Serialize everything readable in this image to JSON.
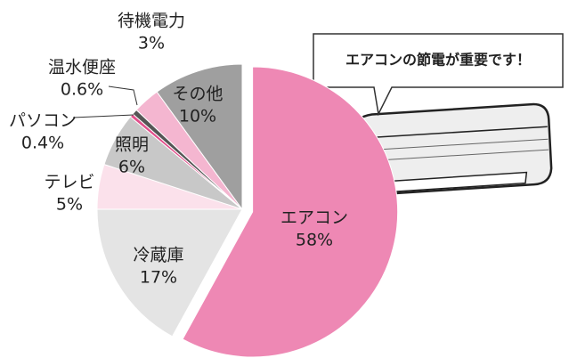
{
  "chart_data": {
    "type": "pie",
    "categories": [
      "エアコン",
      "冷蔵庫",
      "テレビ",
      "照明",
      "パソコン",
      "温水便座",
      "待機電力",
      "その他"
    ],
    "values": [
      58,
      17,
      5,
      6,
      0.4,
      0.6,
      3,
      10
    ],
    "value_labels": [
      "58%",
      "17%",
      "5%",
      "6%",
      "0.4%",
      "0.6%",
      "3%",
      "10%"
    ],
    "colors": [
      "#ee88b4",
      "#e4e4e4",
      "#fbe1eb",
      "#c8c8c8",
      "#e2508c",
      "#555555",
      "#f4b6d0",
      "#9f9f9f"
    ],
    "annotation": "エアコンの節電が重要です！"
  }
}
